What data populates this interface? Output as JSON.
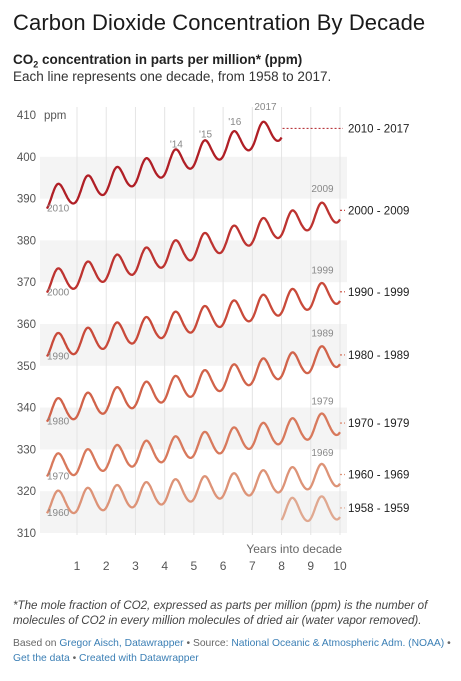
{
  "header": {
    "title": "Carbon Dioxide Concentration By Decade",
    "subtitle_co2_prefix": "CO",
    "subtitle_co2_sub": "2",
    "subtitle_bold_rest": " concentration in parts per million* (ppm)",
    "subtitle": "Each line represents one decade, from 1958 to 2017."
  },
  "footer": {
    "footnote": "*The mole fraction of CO2, expressed as parts per million (ppm) is the number of molecules of CO2 in every million molecules of dried air (water vapor removed).",
    "based_on_label": "Based on",
    "based_on_author": "Gregor Aisch, Datawrapper",
    "source_label": "Source:",
    "source_name": "National Oceanic & Atmospheric Adm. (NOAA)",
    "get_data": "Get the data",
    "created_with": "Created with Datawrapper",
    "separator": "•"
  },
  "chart_data": {
    "type": "line",
    "ylabel": "ppm",
    "xlabel": "Years into decade",
    "xlim": [
      0,
      10
    ],
    "ylim": [
      310,
      410
    ],
    "x_ticks": [
      1,
      2,
      3,
      4,
      5,
      6,
      7,
      8,
      9,
      10
    ],
    "y_ticks": [
      310,
      320,
      330,
      340,
      350,
      360,
      370,
      380,
      390,
      400,
      410
    ],
    "seasonal_amplitude_ppm": 3,
    "series": [
      {
        "name": "1958 - 1959",
        "start_year": 1958,
        "start_x": 8.0,
        "end_x": 10.0,
        "start_ppm": 315.3,
        "end_ppm": 316.0,
        "color": "#e0a890"
      },
      {
        "name": "1960 - 1969",
        "start_year": 1960,
        "start_x": 0.0,
        "end_x": 10.0,
        "start_ppm": 316.9,
        "end_ppm": 324.0,
        "color": "#dd9377",
        "start_label": "1960",
        "end_label": "1969"
      },
      {
        "name": "1970 - 1979",
        "start_year": 1970,
        "start_x": 0.0,
        "end_x": 10.0,
        "start_ppm": 325.7,
        "end_ppm": 336.3,
        "color": "#d8795c",
        "start_label": "1970",
        "end_label": "1979"
      },
      {
        "name": "1980 - 1989",
        "start_year": 1980,
        "start_x": 0.0,
        "end_x": 10.0,
        "start_ppm": 338.8,
        "end_ppm": 352.6,
        "color": "#d1634a",
        "start_label": "1980",
        "end_label": "1989"
      },
      {
        "name": "1990 - 1999",
        "start_year": 1990,
        "start_x": 0.0,
        "end_x": 10.0,
        "start_ppm": 354.4,
        "end_ppm": 367.7,
        "color": "#c94a3a",
        "start_label": "1990",
        "end_label": "1999"
      },
      {
        "name": "2000 - 2009",
        "start_year": 2000,
        "start_x": 0.0,
        "end_x": 10.0,
        "start_ppm": 369.7,
        "end_ppm": 387.2,
        "color": "#bd3330",
        "start_label": "2000",
        "end_label": "2009"
      },
      {
        "name": "2010 - 2017",
        "start_year": 2010,
        "start_x": 0.0,
        "end_x": 8.0,
        "start_ppm": 389.8,
        "end_ppm": 406.8,
        "color": "#b01f26",
        "start_label": "2010",
        "end_label": "2017"
      }
    ],
    "year_annotations": [
      {
        "label": "'14",
        "x": 4.4,
        "y": 402.2
      },
      {
        "label": "'15",
        "x": 5.4,
        "y": 404.6
      },
      {
        "label": "'16",
        "x": 6.4,
        "y": 407.6
      }
    ]
  }
}
